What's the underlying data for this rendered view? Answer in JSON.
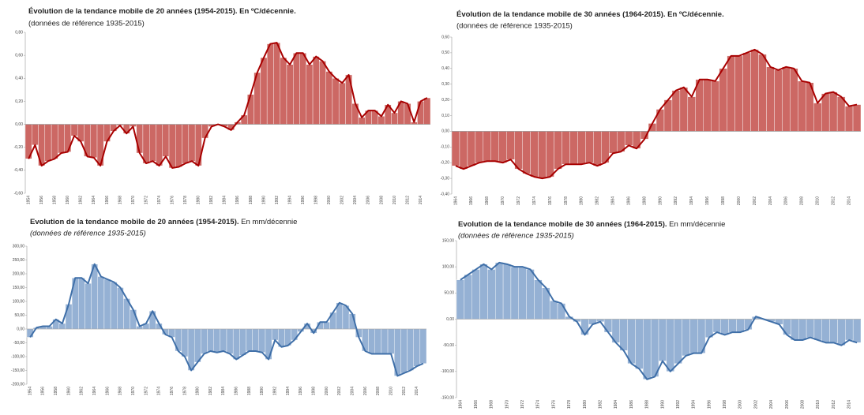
{
  "chart_data": [
    {
      "type": "bar_line",
      "title": "Évolution de la tendance mobile de 20 années (1954-2015). En ºC/décennie.",
      "subtitle": "(données de référence 1935-2015)",
      "categories": [
        "1954",
        null,
        "1956",
        null,
        "1958",
        null,
        "1960",
        null,
        "1962",
        null,
        "1964",
        null,
        "1966",
        null,
        "1968",
        null,
        "1970",
        null,
        "1972",
        null,
        "1974",
        null,
        "1976",
        null,
        "1978",
        null,
        "1980",
        null,
        "1982",
        null,
        "1984",
        null,
        "1986",
        null,
        "1988",
        null,
        "1990",
        null,
        "1992",
        null,
        "1994",
        null,
        "1996",
        null,
        "1998",
        null,
        "2000",
        null,
        "2002",
        null,
        "2004",
        null,
        "2006",
        null,
        "2008",
        null,
        "2010",
        null,
        "2012",
        null,
        "2014",
        null
      ],
      "values": [
        -0.3,
        -0.18,
        -0.36,
        -0.32,
        -0.3,
        -0.25,
        -0.24,
        -0.1,
        -0.15,
        -0.28,
        -0.29,
        -0.36,
        -0.15,
        -0.06,
        -0.01,
        -0.08,
        -0.02,
        -0.25,
        -0.34,
        -0.32,
        -0.36,
        -0.28,
        -0.38,
        -0.37,
        -0.34,
        -0.32,
        -0.36,
        -0.12,
        -0.02,
        0.0,
        -0.02,
        -0.05,
        0.02,
        0.08,
        0.26,
        0.45,
        0.58,
        0.7,
        0.71,
        0.58,
        0.52,
        0.62,
        0.62,
        0.52,
        0.59,
        0.55,
        0.46,
        0.4,
        0.36,
        0.43,
        0.18,
        0.06,
        0.12,
        0.12,
        0.07,
        0.17,
        0.1,
        0.2,
        0.18,
        0.02,
        0.2,
        0.23
      ],
      "color": "#c9605c",
      "line_color": "#a80000",
      "ylim": [
        -0.6,
        0.8
      ],
      "yticks": [
        {
          "value": -0.6,
          "label": "-0,60"
        },
        {
          "value": -0.4,
          "label": "-0,40"
        },
        {
          "value": -0.2,
          "label": "-0,20"
        },
        {
          "value": 0,
          "label": "0,00"
        },
        {
          "value": 0.2,
          "label": "0,20"
        },
        {
          "value": 0.4,
          "label": "0,40"
        },
        {
          "value": 0.6,
          "label": "0,60"
        },
        {
          "value": 0.8,
          "label": "0,80"
        }
      ]
    },
    {
      "type": "bar_line",
      "title": "Évolution de la tendance mobile de 30 années (1964-2015). En ºC/décennie.",
      "subtitle": "(données de référence 1935-2015)",
      "categories": [
        "1964",
        null,
        "1966",
        null,
        "1968",
        null,
        "1970",
        null,
        "1972",
        null,
        "1974",
        null,
        "1976",
        null,
        "1978",
        null,
        "1980",
        null,
        "1982",
        null,
        "1984",
        null,
        "1986",
        null,
        "1988",
        null,
        "1990",
        null,
        "1992",
        null,
        "1994",
        null,
        "1996",
        null,
        "1998",
        null,
        "2000",
        null,
        "2002",
        null,
        "2004",
        null,
        "2006",
        null,
        "2008",
        null,
        "2010",
        null,
        "2012",
        null,
        "2014",
        null
      ],
      "values": [
        -0.22,
        -0.24,
        -0.22,
        -0.2,
        -0.19,
        -0.19,
        -0.2,
        -0.18,
        -0.24,
        -0.27,
        -0.29,
        -0.3,
        -0.29,
        -0.24,
        -0.21,
        -0.21,
        -0.21,
        -0.2,
        -0.22,
        -0.2,
        -0.14,
        -0.13,
        -0.09,
        -0.11,
        -0.05,
        0.05,
        0.14,
        0.2,
        0.26,
        0.28,
        0.22,
        0.33,
        0.33,
        0.32,
        0.4,
        0.48,
        0.48,
        0.5,
        0.52,
        0.49,
        0.41,
        0.39,
        0.41,
        0.4,
        0.32,
        0.31,
        0.18,
        0.24,
        0.25,
        0.22,
        0.16,
        0.17
      ],
      "color": "#c9605c",
      "line_color": "#a80000",
      "ylim": [
        -0.4,
        0.6
      ],
      "yticks": [
        {
          "value": -0.4,
          "label": "-0,40"
        },
        {
          "value": -0.3,
          "label": "-0,30"
        },
        {
          "value": -0.2,
          "label": "-0,20"
        },
        {
          "value": -0.1,
          "label": "-0,10"
        },
        {
          "value": 0,
          "label": "0,00"
        },
        {
          "value": 0.1,
          "label": "0,10"
        },
        {
          "value": 0.2,
          "label": "0,20"
        },
        {
          "value": 0.3,
          "label": "0,30"
        },
        {
          "value": 0.4,
          "label": "0,40"
        },
        {
          "value": 0.5,
          "label": "0,50"
        },
        {
          "value": 0.6,
          "label": "0,60"
        }
      ]
    },
    {
      "type": "bar_line",
      "title": "Evolution de la tendance mobile de 20 années (1954-2015).",
      "unit": "En mm/décennie",
      "subtitle": "(données de référence 1935-2015)",
      "categories": [
        "1954",
        null,
        "1956",
        null,
        "1958",
        null,
        "1960",
        null,
        "1962",
        null,
        "1964",
        null,
        "1966",
        null,
        "1968",
        null,
        "1970",
        null,
        "1972",
        null,
        "1974",
        null,
        "1976",
        null,
        "1978",
        null,
        "1980",
        null,
        "1982",
        null,
        "1984",
        null,
        "1986",
        null,
        "1988",
        null,
        "1990",
        null,
        "1992",
        null,
        "1994",
        null,
        "1996",
        null,
        "1998",
        null,
        "2000",
        null,
        "2002",
        null,
        "2004",
        null,
        "2006",
        null,
        "2008",
        null,
        "2010",
        null,
        "2012",
        null,
        "2014",
        null
      ],
      "values": [
        -30,
        5,
        10,
        10,
        35,
        20,
        90,
        185,
        185,
        165,
        235,
        190,
        180,
        170,
        150,
        110,
        70,
        10,
        20,
        65,
        20,
        -20,
        -30,
        -80,
        -100,
        -150,
        -120,
        -90,
        -80,
        -85,
        -80,
        -90,
        -110,
        -95,
        -80,
        -80,
        -85,
        -110,
        -40,
        -65,
        -60,
        -40,
        -10,
        20,
        -15,
        25,
        25,
        60,
        95,
        85,
        55,
        -30,
        -80,
        -90,
        -90,
        -90,
        -90,
        -170,
        -160,
        -150,
        -135,
        -125
      ],
      "color": "#8fadd2",
      "line_color": "#3f6fa8",
      "ylim": [
        -200,
        300
      ],
      "yticks": [
        {
          "value": -200,
          "label": "-200,00"
        },
        {
          "value": -150,
          "label": "-150,00"
        },
        {
          "value": -100,
          "label": "-100,00"
        },
        {
          "value": -50,
          "label": "-50,00"
        },
        {
          "value": 0,
          "label": "0,00"
        },
        {
          "value": 50,
          "label": "50,00"
        },
        {
          "value": 100,
          "label": "100,00"
        },
        {
          "value": 150,
          "label": "150,00"
        },
        {
          "value": 200,
          "label": "200,00"
        },
        {
          "value": 250,
          "label": "250,00"
        },
        {
          "value": 300,
          "label": "300,00"
        }
      ]
    },
    {
      "type": "bar_line",
      "title": "Evolution de la tendance mobile de 30 années (1964-2015).",
      "unit": "En mm/décennie",
      "subtitle": "(données de référence 1935-2015)",
      "categories": [
        "1964",
        null,
        "1966",
        null,
        "1968",
        null,
        "1970",
        null,
        "1972",
        null,
        "1974",
        null,
        "1976",
        null,
        "1978",
        null,
        "1980",
        null,
        "1982",
        null,
        "1984",
        null,
        "1986",
        null,
        "1988",
        null,
        "1990",
        null,
        "1992",
        null,
        "1994",
        null,
        "1996",
        null,
        "1998",
        null,
        "2000",
        null,
        "2002",
        null,
        "2004",
        null,
        "2006",
        null,
        "2008",
        null,
        "2010",
        null,
        "2012",
        null,
        "2014",
        null
      ],
      "values": [
        75,
        85,
        95,
        105,
        95,
        108,
        105,
        100,
        100,
        95,
        75,
        60,
        35,
        30,
        5,
        -5,
        -30,
        -10,
        -5,
        -25,
        -45,
        -60,
        -85,
        -95,
        -115,
        -110,
        -80,
        -100,
        -85,
        -70,
        -65,
        -65,
        -35,
        -25,
        -30,
        -25,
        -25,
        -20,
        5,
        0,
        -5,
        -10,
        -30,
        -40,
        -40,
        -35,
        -40,
        -45,
        -45,
        -50,
        -40,
        -45
      ],
      "color": "#8fadd2",
      "line_color": "#3f6fa8",
      "ylim": [
        -150,
        150
      ],
      "yticks": [
        {
          "value": -150,
          "label": "-150,00"
        },
        {
          "value": -100,
          "label": "-100,00"
        },
        {
          "value": -50,
          "label": "-50,00"
        },
        {
          "value": 0,
          "label": "0,00"
        },
        {
          "value": 50,
          "label": "50,00"
        },
        {
          "value": 100,
          "label": "100,00"
        },
        {
          "value": 150,
          "label": "150,00"
        }
      ]
    }
  ]
}
